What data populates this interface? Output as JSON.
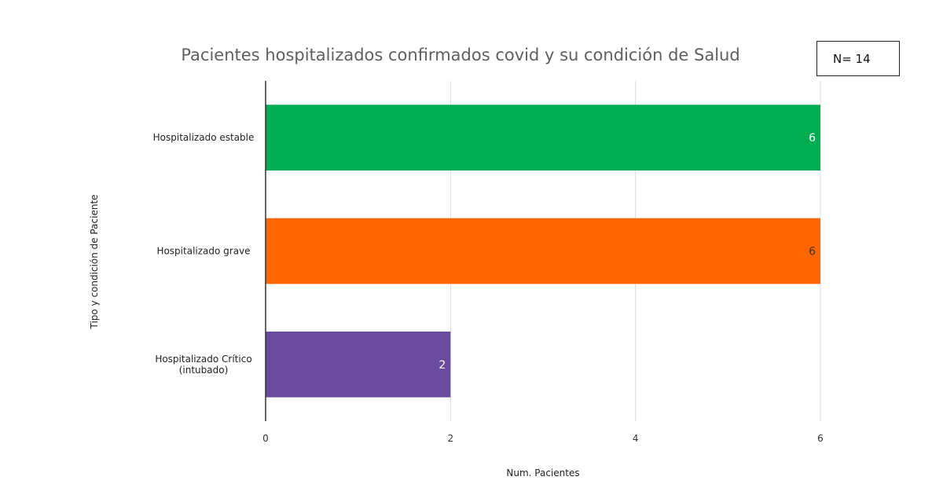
{
  "annotation": {
    "text": "N= 14"
  },
  "chart_data": {
    "type": "bar",
    "orientation": "horizontal",
    "title": "Pacientes hospitalizados confirmados covid y su condición de Salud",
    "xlabel": "Num. Pacientes",
    "ylabel": "Tipo y condición de Paciente",
    "xlim": [
      0,
      6
    ],
    "xticks": [
      "0",
      "2",
      "4",
      "6"
    ],
    "grid": true,
    "legend": "none",
    "categories": [
      [
        "Hospitalizado estable"
      ],
      [
        "Hospitalizado grave"
      ],
      [
        "Hospitalizado Crítico",
        "(intubado)"
      ]
    ],
    "values": [
      6,
      6,
      2
    ],
    "colors": [
      "#00ad53",
      "#ff6600",
      "#6a4ba0"
    ],
    "label_colors": [
      "#ffffff",
      "#333333",
      "#ffffff"
    ]
  }
}
